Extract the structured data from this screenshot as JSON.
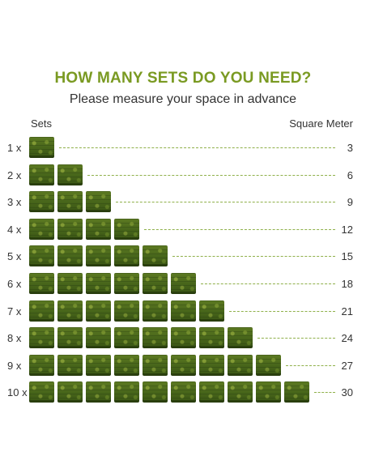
{
  "header": {
    "title": "HOW MANY SETS DO YOU NEED?",
    "subtitle": "Please measure your space in advance"
  },
  "columns": {
    "left": "Sets",
    "right": "Square Meter"
  },
  "colors": {
    "title": "#7a9a22",
    "tile": "#46641a",
    "dash": "#8fb04a"
  },
  "rows": [
    {
      "label": "1 x",
      "sets": 1,
      "value": "3"
    },
    {
      "label": "2 x",
      "sets": 2,
      "value": "6"
    },
    {
      "label": "3 x",
      "sets": 3,
      "value": "9"
    },
    {
      "label": "4 x",
      "sets": 4,
      "value": "12"
    },
    {
      "label": "5 x",
      "sets": 5,
      "value": "15"
    },
    {
      "label": "6 x",
      "sets": 6,
      "value": "18"
    },
    {
      "label": "7 x",
      "sets": 7,
      "value": "21"
    },
    {
      "label": "8 x",
      "sets": 8,
      "value": "24"
    },
    {
      "label": "9 x",
      "sets": 9,
      "value": "27"
    },
    {
      "label": "10 x",
      "sets": 10,
      "value": "30"
    }
  ]
}
